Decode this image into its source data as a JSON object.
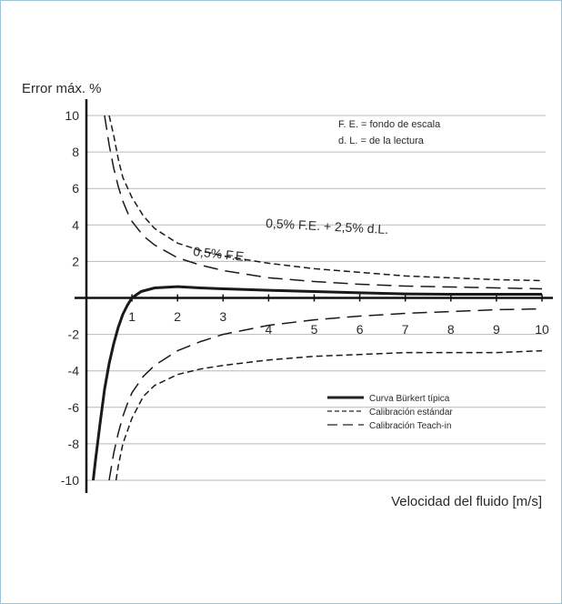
{
  "chart_data": {
    "type": "line",
    "title": "Error máx. %",
    "xlabel": "Velocidad del fluido [m/s]",
    "ylabel": "",
    "xlim": [
      0,
      10
    ],
    "ylim": [
      -10,
      10
    ],
    "x_ticks": [
      "1",
      "2",
      "3",
      "4",
      "5",
      "6",
      "7",
      "8",
      "9",
      "10"
    ],
    "y_ticks": [
      "10",
      "8",
      "6",
      "4",
      "2",
      "-2",
      "-4",
      "-6",
      "-8",
      "-10"
    ],
    "grid": "horizontal",
    "notes": [
      "F. E. = fondo de escala",
      "d. L. = de la lectura"
    ],
    "annotations": [
      "0,5% F.E. + 2,5% d.L.",
      "0,5% F.E."
    ],
    "series": [
      {
        "name": "Curva Bürkert típica",
        "style": "solid",
        "x": [
          0.15,
          0.2,
          0.3,
          0.4,
          0.5,
          0.6,
          0.7,
          0.8,
          0.9,
          1.0,
          1.2,
          1.5,
          2.0,
          2.5,
          3,
          4,
          5,
          6,
          7,
          8,
          9,
          10
        ],
        "y": [
          -10,
          -8.9,
          -6.9,
          -5.0,
          -3.6,
          -2.5,
          -1.6,
          -0.9,
          -0.4,
          0.0,
          0.35,
          0.55,
          0.62,
          0.55,
          0.5,
          0.42,
          0.35,
          0.28,
          0.22,
          0.2,
          0.2,
          0.2
        ]
      },
      {
        "name": "Calibración estándar",
        "style": "dashed",
        "x": [
          0.5,
          0.6,
          0.7,
          0.8,
          1.0,
          1.25,
          1.5,
          2,
          2.5,
          3,
          4,
          5,
          6,
          7,
          8,
          9,
          10
        ],
        "y": [
          10,
          8.9,
          7.6,
          6.6,
          5.5,
          4.5,
          3.8,
          3.0,
          2.6,
          2.3,
          1.9,
          1.6,
          1.4,
          1.2,
          1.1,
          1.0,
          0.95
        ]
      },
      {
        "name": "Calibración estándar",
        "style": "dashed",
        "x": [
          0.65,
          0.7,
          0.8,
          1.0,
          1.25,
          1.5,
          2,
          2.5,
          3,
          4,
          5,
          6,
          7,
          8,
          9,
          10
        ],
        "y": [
          -10,
          -9.2,
          -8.0,
          -6.6,
          -5.4,
          -4.8,
          -4.2,
          -3.9,
          -3.7,
          -3.4,
          -3.2,
          -3.1,
          -3.0,
          -3.0,
          -3.0,
          -2.9
        ]
      },
      {
        "name": "Calibración Teach-in",
        "style": "long-dash",
        "x": [
          0.4,
          0.5,
          0.6,
          0.7,
          0.8,
          0.9,
          1.0,
          1.25,
          1.5,
          2,
          2.5,
          3,
          4,
          5,
          6,
          7,
          8,
          9,
          10
        ],
        "y": [
          10,
          8.4,
          7.1,
          6.1,
          5.3,
          4.7,
          4.2,
          3.4,
          2.9,
          2.2,
          1.8,
          1.5,
          1.1,
          0.9,
          0.75,
          0.65,
          0.6,
          0.55,
          0.5
        ]
      },
      {
        "name": "Calibración Teach-in",
        "style": "long-dash",
        "x": [
          0.5,
          0.6,
          0.7,
          0.8,
          0.9,
          1.0,
          1.25,
          1.5,
          2,
          2.5,
          3,
          4,
          5,
          6,
          7,
          8,
          9,
          10
        ],
        "y": [
          -10,
          -8.5,
          -7.4,
          -6.5,
          -5.8,
          -5.2,
          -4.3,
          -3.7,
          -2.9,
          -2.4,
          -2.0,
          -1.5,
          -1.2,
          -1.0,
          -0.85,
          -0.75,
          -0.65,
          -0.6
        ]
      }
    ],
    "legend": {
      "position": "bottom-right",
      "entries": [
        {
          "label": "Curva Bürkert típica",
          "style": "solid"
        },
        {
          "label": "Calibración estándar",
          "style": "dashed"
        },
        {
          "label": "Calibración Teach-in",
          "style": "long-dash"
        }
      ]
    }
  }
}
